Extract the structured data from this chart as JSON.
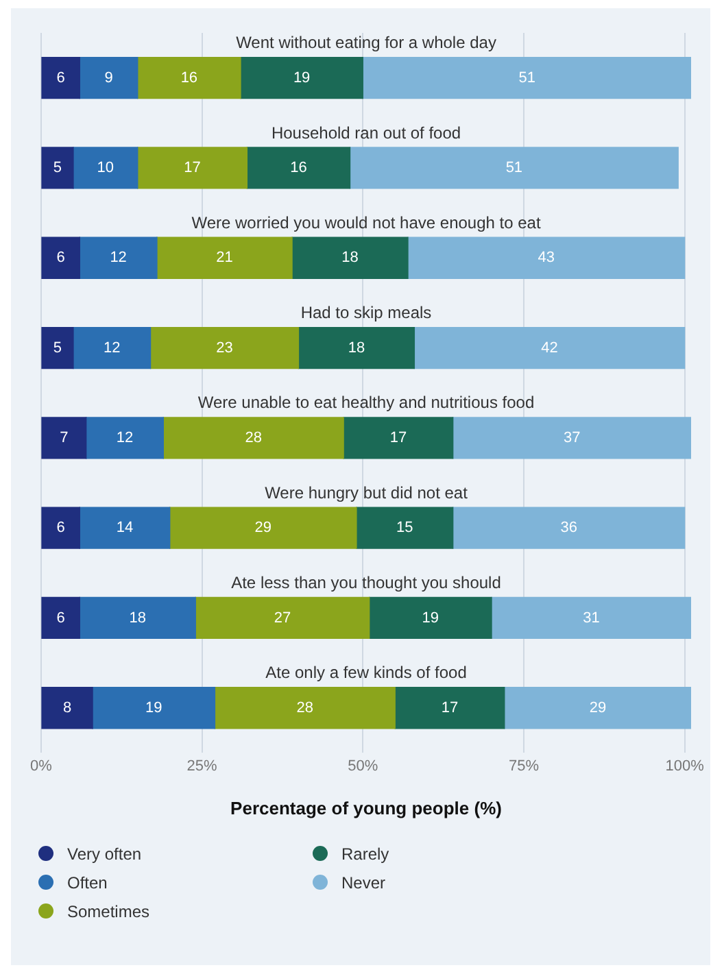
{
  "chart_data": {
    "type": "bar",
    "orientation": "horizontal",
    "stacked": true,
    "categories": [
      "Went without eating for a whole day",
      "Household ran out of food",
      "Were worried you would not have enough to eat",
      "Had to skip meals",
      "Were unable to eat healthy and nutritious food",
      "Were hungry but did not eat",
      "Ate less than you thought you should",
      "Ate only a few kinds of food"
    ],
    "series": [
      {
        "name": "Very often",
        "color": "#1f2f7f",
        "values": [
          6,
          5,
          6,
          5,
          7,
          6,
          6,
          8
        ]
      },
      {
        "name": "Often",
        "color": "#2b6fb2",
        "values": [
          9,
          10,
          12,
          12,
          12,
          14,
          18,
          19
        ]
      },
      {
        "name": "Sometimes",
        "color": "#8ba51c",
        "values": [
          16,
          17,
          21,
          23,
          28,
          29,
          27,
          28
        ]
      },
      {
        "name": "Rarely",
        "color": "#1b6a56",
        "values": [
          19,
          16,
          18,
          18,
          17,
          15,
          19,
          17
        ]
      },
      {
        "name": "Never",
        "color": "#7fb4d8",
        "values": [
          51,
          51,
          43,
          42,
          37,
          36,
          31,
          29
        ]
      }
    ],
    "xlim": [
      0,
      101
    ],
    "xticks": [
      {
        "value": 0,
        "label": "0%"
      },
      {
        "value": 25,
        "label": "25%"
      },
      {
        "value": 50,
        "label": "50%"
      },
      {
        "value": 75,
        "label": "75%"
      },
      {
        "value": 100,
        "label": "100%"
      }
    ],
    "xlabel": "Percentage of young people (%)",
    "data_labels": true,
    "grid": "x",
    "legend": "bottom"
  }
}
